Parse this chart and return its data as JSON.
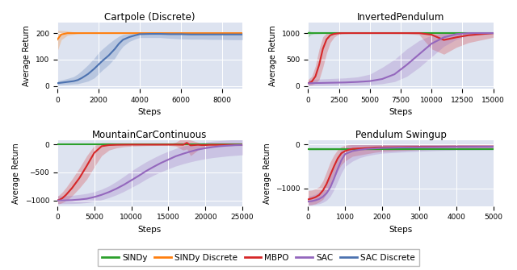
{
  "titles": [
    "Cartpole (Discrete)",
    "InvertedPendulum",
    "MountainCarContinuous",
    "Pendulum Swingup"
  ],
  "ylabel": "Average Return",
  "xlabel": "Steps",
  "bg_color": "#dde3f0",
  "fig_bg": "#ffffff",
  "legend_entries": [
    "SINDy",
    "SINDy Discrete",
    "MBPO",
    "SAC",
    "SAC Discrete"
  ],
  "line_colors": {
    "sindy": "#2ca02c",
    "sindy_discrete": "#ff7f0e",
    "mbpo": "#d62728",
    "sac": "#9467bd",
    "sac_discrete": "#4c72b0"
  },
  "cartpole": {
    "xlim": [
      0,
      9000
    ],
    "ylim": [
      -10,
      240
    ],
    "xticks": [
      0,
      2000,
      4000,
      6000,
      8000
    ],
    "yticks": [
      0,
      100,
      200
    ],
    "sindy": {
      "x": [],
      "y": [],
      "y_lo": [],
      "y_hi": []
    },
    "sindy_discrete": {
      "x": [
        0,
        200,
        500,
        1000,
        1500,
        2000,
        3000,
        4000,
        5000,
        6000,
        7000,
        8000,
        9000
      ],
      "y": [
        175,
        195,
        200,
        200,
        200,
        200,
        200,
        200,
        200,
        200,
        200,
        200,
        200
      ],
      "y_lo": [
        130,
        175,
        192,
        198,
        199,
        199,
        200,
        200,
        200,
        200,
        200,
        200,
        200
      ],
      "y_hi": [
        210,
        210,
        208,
        202,
        201,
        201,
        200,
        200,
        200,
        200,
        200,
        200,
        200
      ]
    },
    "mbpo": {
      "x": [],
      "y": [],
      "y_lo": [],
      "y_hi": []
    },
    "sac": {
      "x": [],
      "y": [],
      "y_lo": [],
      "y_hi": []
    },
    "sac_discrete": {
      "x": [
        0,
        200,
        500,
        800,
        1000,
        1200,
        1500,
        1800,
        2000,
        2200,
        2500,
        2800,
        3000,
        3200,
        3500,
        3800,
        4000,
        4500,
        5000,
        5500,
        6000,
        6500,
        7000,
        7500,
        8000,
        8500,
        9000
      ],
      "y": [
        10,
        12,
        15,
        18,
        22,
        30,
        45,
        65,
        80,
        95,
        115,
        140,
        160,
        175,
        185,
        192,
        196,
        197,
        197,
        196,
        196,
        195,
        195,
        195,
        195,
        195,
        195
      ],
      "y_lo": [
        3,
        4,
        5,
        7,
        8,
        12,
        18,
        30,
        45,
        60,
        80,
        105,
        130,
        150,
        168,
        178,
        183,
        183,
        183,
        180,
        178,
        177,
        177,
        176,
        176,
        175,
        175
      ],
      "y_hi": [
        18,
        22,
        28,
        35,
        45,
        58,
        80,
        105,
        125,
        140,
        160,
        178,
        188,
        195,
        198,
        200,
        202,
        202,
        202,
        202,
        202,
        202,
        202,
        202,
        202,
        202,
        202
      ]
    }
  },
  "invertedpendulum": {
    "xlim": [
      0,
      15000
    ],
    "ylim": [
      -50,
      1200
    ],
    "xticks": [
      0,
      2500,
      5000,
      7500,
      10000,
      12500,
      15000
    ],
    "yticks": [
      0,
      500,
      1000
    ],
    "sindy": {
      "x": [
        0,
        200,
        500,
        1000,
        2000,
        5000,
        10000,
        15000
      ],
      "y": [
        1000,
        1000,
        1000,
        1000,
        1000,
        1000,
        1000,
        1000
      ],
      "y_lo": [
        920,
        970,
        985,
        990,
        995,
        998,
        998,
        998
      ],
      "y_hi": [
        1060,
        1030,
        1015,
        1010,
        1005,
        1002,
        1002,
        1002
      ]
    },
    "sindy_discrete": {
      "x": [],
      "y": [],
      "y_lo": [],
      "y_hi": []
    },
    "mbpo": {
      "x": [
        0,
        300,
        600,
        900,
        1200,
        1500,
        1800,
        2100,
        2400,
        2700,
        3000,
        3500,
        4000,
        4500,
        5000,
        6000,
        7000,
        8000,
        9000,
        10000,
        11000,
        12000,
        13000,
        14000,
        15000
      ],
      "y": [
        50,
        80,
        180,
        400,
        700,
        880,
        960,
        985,
        995,
        1000,
        1000,
        1000,
        1000,
        1000,
        1000,
        1000,
        1000,
        1000,
        1000,
        970,
        870,
        920,
        960,
        980,
        1000
      ],
      "y_lo": [
        10,
        20,
        50,
        120,
        350,
        620,
        820,
        920,
        970,
        985,
        990,
        995,
        995,
        995,
        995,
        995,
        993,
        990,
        970,
        700,
        600,
        730,
        820,
        870,
        920
      ],
      "y_hi": [
        120,
        180,
        380,
        700,
        930,
        1000,
        1010,
        1010,
        1010,
        1010,
        1010,
        1010,
        1010,
        1010,
        1010,
        1010,
        1010,
        1010,
        1010,
        1010,
        1000,
        1000,
        1000,
        1000,
        1010
      ]
    },
    "sac": {
      "x": [
        0,
        1000,
        2000,
        3000,
        4000,
        5000,
        6000,
        7000,
        8000,
        9000,
        10000,
        11000,
        12000,
        13000,
        14000,
        15000
      ],
      "y": [
        50,
        55,
        60,
        65,
        75,
        90,
        130,
        220,
        400,
        600,
        800,
        920,
        980,
        1000,
        1000,
        1000
      ],
      "y_lo": [
        5,
        8,
        10,
        12,
        15,
        22,
        40,
        80,
        180,
        350,
        550,
        750,
        880,
        950,
        970,
        980
      ],
      "y_hi": [
        120,
        130,
        140,
        150,
        170,
        220,
        350,
        500,
        700,
        860,
        960,
        1000,
        1010,
        1010,
        1010,
        1010
      ]
    },
    "sac_discrete": {
      "x": [],
      "y": [],
      "y_lo": [],
      "y_hi": []
    }
  },
  "mountaincar": {
    "xlim": [
      0,
      25000
    ],
    "ylim": [
      -1100,
      80
    ],
    "xticks": [
      0,
      5000,
      10000,
      15000,
      20000,
      25000
    ],
    "yticks": [
      -1000,
      -500,
      0
    ],
    "sindy": {
      "x": [
        0,
        2000,
        5000,
        10000,
        15000,
        20000,
        25000
      ],
      "y": [
        3,
        3,
        3,
        3,
        3,
        3,
        3
      ],
      "y_lo": [
        1,
        1,
        1,
        1,
        1,
        1,
        1
      ],
      "y_hi": [
        5,
        5,
        5,
        5,
        5,
        5,
        5
      ]
    },
    "sindy_discrete": {
      "x": [],
      "y": [],
      "y_lo": [],
      "y_hi": []
    },
    "mbpo": {
      "x": [
        0,
        300,
        700,
        1200,
        2000,
        3000,
        4000,
        5000,
        6000,
        7000,
        8000,
        9000,
        10000,
        11000,
        12000,
        13000,
        14000,
        15000,
        16000,
        17000,
        17500,
        18000,
        19000,
        19500,
        20000,
        20500,
        21000,
        22000,
        23000,
        24000,
        25000
      ],
      "y": [
        -1000,
        -990,
        -960,
        -900,
        -780,
        -600,
        -380,
        -150,
        -30,
        -10,
        -5,
        -3,
        -2,
        -2,
        -2,
        -2,
        -2,
        -2,
        -2,
        -5,
        30,
        -15,
        -5,
        -10,
        -10,
        -5,
        -5,
        -5,
        -5,
        -5,
        -5
      ],
      "y_lo": [
        -1060,
        -1060,
        -1040,
        -1010,
        -920,
        -780,
        -620,
        -400,
        -200,
        -100,
        -60,
        -40,
        -30,
        -25,
        -20,
        -18,
        -15,
        -15,
        -30,
        -100,
        -80,
        -200,
        -100,
        -80,
        -70,
        -50,
        -40,
        -30,
        -25,
        -20,
        -20
      ],
      "y_hi": [
        -930,
        -900,
        -850,
        -770,
        -620,
        -420,
        -200,
        -20,
        30,
        30,
        25,
        20,
        15,
        12,
        10,
        8,
        8,
        8,
        40,
        120,
        150,
        80,
        40,
        20,
        15,
        12,
        10,
        8,
        8,
        8,
        8
      ]
    },
    "sac": {
      "x": [
        0,
        1000,
        2000,
        3000,
        4000,
        5000,
        6000,
        7000,
        8000,
        9000,
        10000,
        11000,
        12000,
        13000,
        14000,
        15000,
        16000,
        17000,
        18000,
        19000,
        20000,
        21000,
        22000,
        23000,
        24000,
        25000
      ],
      "y": [
        -1000,
        -1000,
        -995,
        -985,
        -970,
        -940,
        -900,
        -850,
        -790,
        -720,
        -640,
        -560,
        -475,
        -400,
        -330,
        -270,
        -210,
        -165,
        -125,
        -90,
        -65,
        -45,
        -30,
        -20,
        -12,
        -8
      ],
      "y_lo": [
        -1060,
        -1060,
        -1058,
        -1052,
        -1040,
        -1018,
        -990,
        -950,
        -900,
        -840,
        -770,
        -700,
        -620,
        -550,
        -490,
        -435,
        -385,
        -345,
        -310,
        -280,
        -255,
        -235,
        -220,
        -205,
        -195,
        -185
      ],
      "y_hi": [
        -920,
        -920,
        -910,
        -895,
        -875,
        -845,
        -800,
        -740,
        -660,
        -570,
        -475,
        -390,
        -310,
        -240,
        -175,
        -120,
        -70,
        -30,
        0,
        25,
        45,
        60,
        70,
        80,
        88,
        95
      ]
    },
    "sac_discrete": {
      "x": [],
      "y": [],
      "y_lo": [],
      "y_hi": []
    }
  },
  "pendulumswingup": {
    "xlim": [
      0,
      5000
    ],
    "ylim": [
      -1400,
      100
    ],
    "xticks": [
      0,
      1000,
      2000,
      3000,
      4000,
      5000
    ],
    "yticks": [
      -1000,
      0
    ],
    "sindy": {
      "x": [
        0,
        200,
        500,
        1000,
        2000,
        3000,
        4000,
        5000
      ],
      "y": [
        -100,
        -100,
        -100,
        -100,
        -100,
        -100,
        -100,
        -100
      ],
      "y_lo": [
        -130,
        -130,
        -128,
        -126,
        -124,
        -122,
        -120,
        -120
      ],
      "y_hi": [
        -70,
        -70,
        -72,
        -74,
        -76,
        -78,
        -80,
        -80
      ]
    },
    "sindy_discrete": {
      "x": [],
      "y": [],
      "y_lo": [],
      "y_hi": []
    },
    "mbpo": {
      "x": [
        0,
        100,
        200,
        300,
        400,
        500,
        600,
        700,
        800,
        900,
        1000,
        1100,
        1200,
        1400,
        1600,
        1800,
        2000,
        2500,
        3000,
        3500,
        4000,
        4500,
        5000
      ],
      "y": [
        -1250,
        -1230,
        -1200,
        -1150,
        -1050,
        -900,
        -700,
        -500,
        -320,
        -200,
        -150,
        -120,
        -100,
        -90,
        -80,
        -70,
        -65,
        -60,
        -55,
        -52,
        -50,
        -50,
        -50
      ],
      "y_lo": [
        -1380,
        -1370,
        -1350,
        -1310,
        -1250,
        -1120,
        -960,
        -780,
        -600,
        -460,
        -380,
        -320,
        -270,
        -240,
        -210,
        -180,
        -160,
        -140,
        -120,
        -110,
        -100,
        -100,
        -100
      ],
      "y_hi": [
        -1050,
        -1040,
        -1010,
        -960,
        -830,
        -620,
        -400,
        -240,
        -120,
        -50,
        -20,
        0,
        0,
        0,
        0,
        0,
        0,
        0,
        0,
        0,
        0,
        0,
        0
      ]
    },
    "sac": {
      "x": [
        0,
        100,
        200,
        300,
        400,
        500,
        600,
        700,
        800,
        900,
        1000,
        1200,
        1400,
        1600,
        1800,
        2000,
        2500,
        3000,
        3500,
        4000,
        4500,
        5000
      ],
      "y": [
        -1300,
        -1290,
        -1270,
        -1240,
        -1190,
        -1110,
        -980,
        -780,
        -560,
        -360,
        -220,
        -150,
        -120,
        -100,
        -90,
        -80,
        -70,
        -65,
        -60,
        -56,
        -54,
        -52
      ],
      "y_lo": [
        -1380,
        -1375,
        -1365,
        -1350,
        -1320,
        -1270,
        -1180,
        -1030,
        -840,
        -650,
        -500,
        -380,
        -300,
        -255,
        -225,
        -200,
        -175,
        -155,
        -140,
        -130,
        -125,
        -120
      ],
      "y_hi": [
        -1180,
        -1160,
        -1130,
        -1080,
        -1000,
        -880,
        -700,
        -480,
        -270,
        -110,
        -40,
        0,
        0,
        0,
        0,
        0,
        0,
        0,
        0,
        0,
        0,
        0
      ]
    },
    "sac_discrete": {
      "x": [],
      "y": [],
      "y_lo": [],
      "y_hi": []
    }
  }
}
